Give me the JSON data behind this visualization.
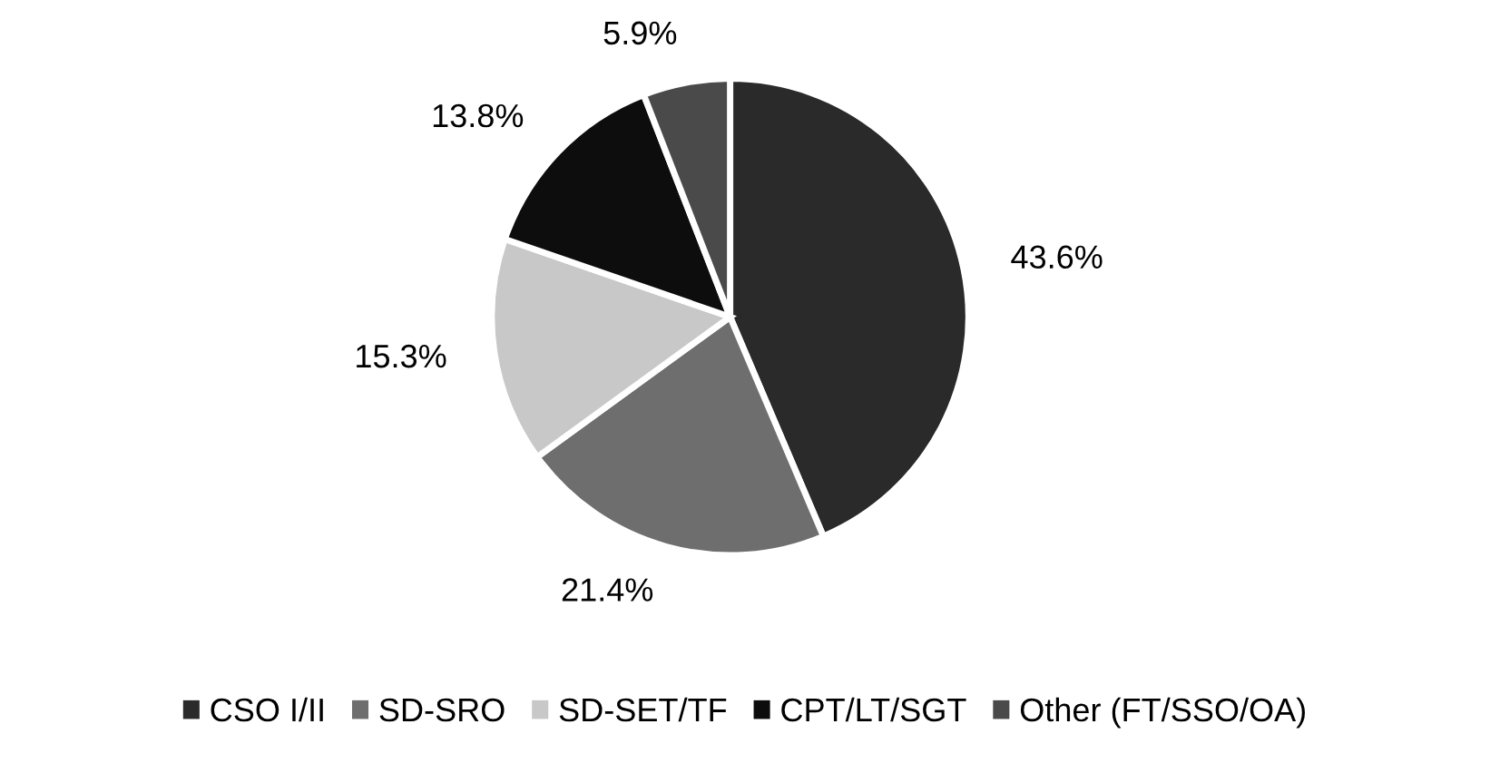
{
  "chart_data": {
    "type": "pie",
    "categories": [
      "CSO I/II",
      "SD-SRO",
      "SD-SET/TF",
      "CPT/LT/SGT",
      "Other (FT/SSO/OA)"
    ],
    "values": [
      43.6,
      21.4,
      15.3,
      13.8,
      5.9
    ],
    "colors": [
      "#2a2a2a",
      "#6e6e6e",
      "#c8c8c8",
      "#0d0d0d",
      "#4a4a4a"
    ],
    "value_labels": [
      "43.6%",
      "21.4%",
      "15.3%",
      "13.8%",
      "5.9%"
    ],
    "legend": "bottom"
  }
}
